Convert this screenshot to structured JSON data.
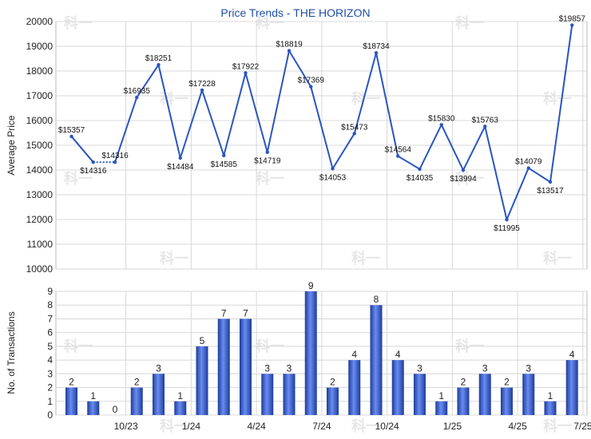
{
  "chart_data": [
    {
      "type": "line",
      "title": "Price Trends - THE HORIZON",
      "ylabel": "Average Price",
      "ylim": [
        10000,
        20000
      ],
      "yticks": [
        10000,
        11000,
        12000,
        13000,
        14000,
        15000,
        16000,
        17000,
        18000,
        19000,
        20000
      ],
      "grid": true,
      "series": [
        {
          "values": [
            15357,
            14316,
            14316,
            16935,
            18251,
            14484,
            17228,
            14585,
            17922,
            14719,
            18819,
            17369,
            14053,
            15473,
            18734,
            14564,
            14035,
            15830,
            13994,
            15763,
            11995,
            14079,
            13517,
            19857
          ],
          "labels": [
            "15357",
            "14316",
            "14316",
            "16935",
            "18251",
            "14484",
            "17228",
            "14585",
            "17922",
            "14719",
            "18819",
            "17369",
            "14053",
            "15473",
            "18734",
            "14564",
            "14035",
            "15830",
            "13994",
            "15763",
            "11995",
            "14079",
            "13517",
            "19857"
          ],
          "dashed_segment": [
            1,
            2
          ]
        }
      ]
    },
    {
      "type": "bar",
      "ylabel": "No. of Transactions",
      "ylim": [
        0,
        9
      ],
      "yticks": [
        0,
        1,
        2,
        3,
        4,
        5,
        6,
        7,
        8,
        9
      ],
      "grid": true,
      "values": [
        2,
        1,
        0,
        2,
        3,
        1,
        5,
        7,
        7,
        3,
        3,
        9,
        2,
        4,
        8,
        4,
        3,
        1,
        2,
        3,
        2,
        3,
        1,
        4
      ],
      "value_labels": [
        "2",
        "1",
        "0",
        "2",
        "3",
        "1",
        "5",
        "7",
        "7",
        "3",
        "3",
        "9",
        "2",
        "4",
        "8",
        "4",
        "3",
        "1",
        "2",
        "3",
        "2",
        "3",
        "1",
        "4"
      ]
    }
  ],
  "x_axis": {
    "ticks": [
      {
        "index": 2,
        "label": "10/23"
      },
      {
        "index": 5,
        "label": "1/24"
      },
      {
        "index": 8,
        "label": "4/24"
      },
      {
        "index": 11,
        "label": "7/24"
      },
      {
        "index": 14,
        "label": "10/24"
      },
      {
        "index": 17,
        "label": "1/25"
      },
      {
        "index": 20,
        "label": "4/25"
      },
      {
        "index": 23,
        "label": "7/25"
      }
    ]
  },
  "colors": {
    "line": "#2a55c0",
    "bar": "#3a5fcd",
    "grid": "#d8d8d8",
    "title": "#1f4fa8"
  },
  "watermark": "科一"
}
